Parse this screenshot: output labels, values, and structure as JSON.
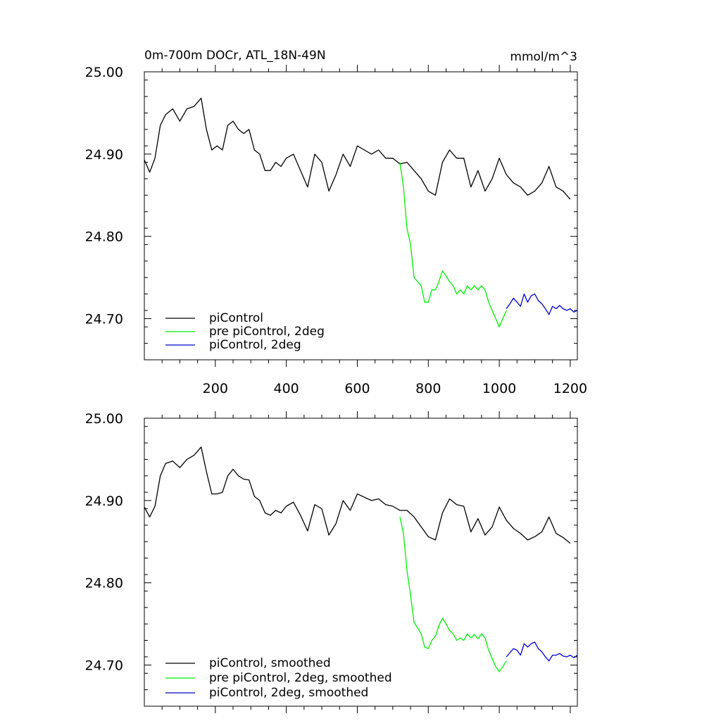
{
  "chart_data": [
    {
      "type": "line",
      "title_left": "0m-700m DOCr, ATL_18N-49N",
      "title_right": "mmol/m^3",
      "xlim": [
        0,
        1220
      ],
      "ylim": [
        24.65,
        25.0
      ],
      "xticks": [
        200,
        400,
        600,
        800,
        1000,
        1200
      ],
      "xtick_labels": [
        "200",
        "400",
        "600",
        "800",
        "1000",
        "1200"
      ],
      "yticks": [
        25.0,
        24.9,
        24.8,
        24.7
      ],
      "ytick_labels": [
        "25.00",
        "24.90",
        "24.80",
        "24.70"
      ],
      "series": [
        {
          "name": "piControl",
          "color": "#000000",
          "x": [
            0,
            15,
            30,
            45,
            60,
            80,
            100,
            120,
            140,
            160,
            175,
            190,
            205,
            220,
            235,
            250,
            265,
            280,
            295,
            310,
            325,
            340,
            355,
            370,
            385,
            400,
            420,
            440,
            460,
            480,
            500,
            520,
            540,
            560,
            580,
            600,
            620,
            640,
            660,
            680,
            700,
            720,
            740,
            760,
            780,
            800,
            820,
            840,
            860,
            880,
            900,
            920,
            940,
            960,
            980,
            1000,
            1020,
            1040,
            1060,
            1080,
            1100,
            1120,
            1140,
            1160,
            1180,
            1200
          ],
          "y": [
            24.893,
            24.878,
            24.895,
            24.935,
            24.948,
            24.955,
            24.94,
            24.955,
            24.958,
            24.968,
            24.93,
            24.905,
            24.91,
            24.905,
            24.935,
            24.94,
            24.93,
            24.925,
            24.93,
            24.905,
            24.9,
            24.88,
            24.88,
            24.89,
            24.885,
            24.895,
            24.9,
            24.88,
            24.86,
            24.9,
            24.89,
            24.855,
            24.875,
            24.9,
            24.885,
            24.91,
            24.905,
            24.9,
            24.905,
            24.895,
            24.895,
            24.888,
            24.89,
            24.88,
            24.87,
            24.855,
            24.85,
            24.89,
            24.905,
            24.895,
            24.895,
            24.86,
            24.88,
            24.855,
            24.87,
            24.895,
            24.875,
            24.865,
            24.86,
            24.85,
            24.855,
            24.865,
            24.885,
            24.86,
            24.855,
            24.845
          ]
        },
        {
          "name": "pre piControl, 2deg",
          "color": "#00ee00",
          "x": [
            720,
            730,
            740,
            750,
            760,
            770,
            780,
            790,
            800,
            810,
            820,
            830,
            840,
            850,
            860,
            870,
            880,
            890,
            900,
            910,
            920,
            930,
            940,
            950,
            960,
            970,
            980,
            990,
            1000,
            1010,
            1020
          ],
          "y": [
            24.89,
            24.86,
            24.81,
            24.79,
            24.75,
            24.745,
            24.74,
            24.72,
            24.72,
            24.735,
            24.735,
            24.745,
            24.758,
            24.752,
            24.745,
            24.74,
            24.73,
            24.735,
            24.73,
            24.74,
            24.735,
            24.74,
            24.735,
            24.74,
            24.735,
            24.72,
            24.71,
            24.7,
            24.69,
            24.7,
            24.71
          ]
        },
        {
          "name": "piControl, 2deg",
          "color": "#0000cc",
          "x": [
            1020,
            1030,
            1040,
            1050,
            1060,
            1070,
            1080,
            1090,
            1100,
            1110,
            1120,
            1130,
            1140,
            1150,
            1160,
            1170,
            1180,
            1190,
            1200,
            1210,
            1220
          ],
          "y": [
            24.712,
            24.718,
            24.725,
            24.72,
            24.715,
            24.73,
            24.72,
            24.728,
            24.73,
            24.722,
            24.718,
            24.712,
            24.705,
            24.715,
            24.712,
            24.716,
            24.712,
            24.71,
            24.712,
            24.708,
            24.71
          ]
        }
      ],
      "legend_position": "bottom-left"
    },
    {
      "type": "line",
      "xlim": [
        0,
        1220
      ],
      "ylim": [
        24.65,
        25.0
      ],
      "xticks": [
        200,
        400,
        600,
        800,
        1000,
        1200
      ],
      "yticks": [
        25.0,
        24.9,
        24.8,
        24.7
      ],
      "ytick_labels": [
        "25.00",
        "24.90",
        "24.80",
        "24.70"
      ],
      "series": [
        {
          "name": "piControl, smoothed",
          "color": "#000000",
          "x": [
            0,
            15,
            30,
            45,
            60,
            80,
            100,
            120,
            140,
            160,
            175,
            190,
            205,
            220,
            235,
            250,
            265,
            280,
            295,
            310,
            325,
            340,
            355,
            370,
            385,
            400,
            420,
            440,
            460,
            480,
            500,
            520,
            540,
            560,
            580,
            600,
            620,
            640,
            660,
            680,
            700,
            720,
            740,
            760,
            780,
            800,
            820,
            840,
            860,
            880,
            900,
            920,
            940,
            960,
            980,
            1000,
            1020,
            1040,
            1060,
            1080,
            1100,
            1120,
            1140,
            1160,
            1180,
            1200
          ],
          "y": [
            24.892,
            24.88,
            24.893,
            24.93,
            24.945,
            24.948,
            24.94,
            24.95,
            24.955,
            24.965,
            24.935,
            24.908,
            24.908,
            24.91,
            24.93,
            24.938,
            24.93,
            24.926,
            24.925,
            24.905,
            24.9,
            24.885,
            24.882,
            24.888,
            24.885,
            24.893,
            24.898,
            24.882,
            24.863,
            24.895,
            24.89,
            24.858,
            24.872,
            24.9,
            24.888,
            24.908,
            24.904,
            24.9,
            24.902,
            24.895,
            24.893,
            24.888,
            24.888,
            24.88,
            24.868,
            24.856,
            24.852,
            24.885,
            24.902,
            24.895,
            24.893,
            24.862,
            24.878,
            24.858,
            24.868,
            24.892,
            24.876,
            24.866,
            24.86,
            24.852,
            24.856,
            24.862,
            24.88,
            24.86,
            24.855,
            24.848
          ]
        },
        {
          "name": "pre piControl, 2deg, smoothed",
          "color": "#00ee00",
          "x": [
            720,
            730,
            740,
            750,
            760,
            770,
            780,
            790,
            800,
            810,
            820,
            830,
            840,
            850,
            860,
            870,
            880,
            890,
            900,
            910,
            920,
            930,
            940,
            950,
            960,
            970,
            980,
            990,
            1000,
            1010,
            1020
          ],
          "y": [
            24.88,
            24.86,
            24.815,
            24.785,
            24.752,
            24.745,
            24.738,
            24.722,
            24.72,
            24.73,
            24.735,
            24.748,
            24.757,
            24.75,
            24.742,
            24.738,
            24.73,
            24.733,
            24.73,
            24.738,
            24.733,
            24.737,
            24.732,
            24.738,
            24.733,
            24.718,
            24.708,
            24.698,
            24.692,
            24.698,
            24.705
          ]
        },
        {
          "name": "piControl, 2deg, smoothed",
          "color": "#0000cc",
          "x": [
            1020,
            1030,
            1040,
            1050,
            1060,
            1070,
            1080,
            1090,
            1100,
            1110,
            1120,
            1130,
            1140,
            1150,
            1160,
            1170,
            1180,
            1190,
            1200,
            1210,
            1220
          ],
          "y": [
            24.71,
            24.715,
            24.72,
            24.718,
            24.712,
            24.726,
            24.722,
            24.726,
            24.728,
            24.72,
            24.716,
            24.71,
            24.705,
            24.712,
            24.712,
            24.714,
            24.711,
            24.71,
            24.712,
            24.709,
            24.712
          ]
        }
      ],
      "legend_position": "bottom-left"
    }
  ]
}
